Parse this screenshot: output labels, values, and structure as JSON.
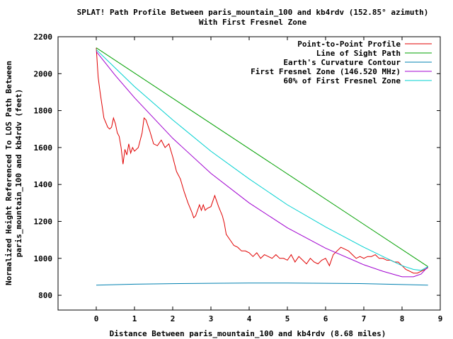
{
  "chart_data": {
    "type": "line",
    "title": "SPLAT! Path Profile Between paris_mountain_100 and kb4rdv (152.85° azimuth)",
    "subtitle": "With First Fresnel Zone",
    "xlabel": "Distance Between paris_mountain_100 and kb4rdv (8.68 miles)",
    "ylabel_lines": [
      "Normalized Height Referenced To LOS Path Between",
      "paris_mountain_100 and kb4rdv (feet)"
    ],
    "xlim": [
      -1,
      9
    ],
    "ylim": [
      720,
      2200
    ],
    "xticks": [
      "0",
      "1",
      "2",
      "3",
      "4",
      "5",
      "6",
      "7",
      "8",
      "9"
    ],
    "yticks": [
      "800",
      "1000",
      "1200",
      "1400",
      "1600",
      "1800",
      "2000",
      "2200"
    ],
    "legend_position": "top-right",
    "series": [
      {
        "name": "Point-to-Point Profile",
        "color": "#e00000",
        "x": [
          0,
          0.05,
          0.1,
          0.15,
          0.2,
          0.3,
          0.35,
          0.4,
          0.45,
          0.5,
          0.55,
          0.6,
          0.65,
          0.7,
          0.75,
          0.8,
          0.85,
          0.9,
          0.95,
          1.0,
          1.1,
          1.2,
          1.25,
          1.3,
          1.4,
          1.5,
          1.6,
          1.7,
          1.8,
          1.9,
          2.0,
          2.1,
          2.2,
          2.3,
          2.4,
          2.5,
          2.55,
          2.6,
          2.7,
          2.75,
          2.8,
          2.85,
          2.9,
          3.0,
          3.1,
          3.2,
          3.3,
          3.35,
          3.4,
          3.5,
          3.6,
          3.7,
          3.8,
          3.9,
          4.0,
          4.1,
          4.2,
          4.3,
          4.4,
          4.5,
          4.6,
          4.7,
          4.8,
          4.9,
          5.0,
          5.1,
          5.2,
          5.3,
          5.4,
          5.5,
          5.6,
          5.7,
          5.8,
          5.9,
          6.0,
          6.1,
          6.2,
          6.3,
          6.4,
          6.5,
          6.6,
          6.7,
          6.8,
          6.9,
          7.0,
          7.1,
          7.2,
          7.3,
          7.4,
          7.5,
          7.6,
          7.7,
          7.8,
          7.9,
          8.0,
          8.1,
          8.2,
          8.3,
          8.4,
          8.5,
          8.6,
          8.68
        ],
        "values": [
          2140,
          1980,
          1900,
          1830,
          1760,
          1710,
          1700,
          1710,
          1760,
          1730,
          1680,
          1660,
          1600,
          1510,
          1590,
          1560,
          1620,
          1570,
          1600,
          1580,
          1600,
          1680,
          1760,
          1750,
          1690,
          1620,
          1610,
          1640,
          1600,
          1620,
          1550,
          1470,
          1430,
          1360,
          1300,
          1250,
          1220,
          1230,
          1290,
          1260,
          1290,
          1260,
          1270,
          1280,
          1340,
          1280,
          1230,
          1190,
          1130,
          1100,
          1070,
          1060,
          1040,
          1040,
          1030,
          1010,
          1030,
          1000,
          1020,
          1010,
          1000,
          1020,
          1000,
          1000,
          990,
          1020,
          980,
          1010,
          990,
          970,
          1000,
          980,
          970,
          990,
          1000,
          960,
          1020,
          1040,
          1060,
          1050,
          1040,
          1020,
          1000,
          1010,
          1000,
          1010,
          1010,
          1020,
          1000,
          1000,
          990,
          990,
          980,
          980,
          960,
          940,
          930,
          920,
          920,
          930,
          940,
          950
        ]
      },
      {
        "name": "Line of Sight Path",
        "color": "#00a000",
        "x": [
          0,
          8.68
        ],
        "values": [
          2140,
          955
        ]
      },
      {
        "name": "Earth's Curvature Contour",
        "color": "#0080b0",
        "x": [
          0,
          1,
          2,
          3,
          4,
          4.34,
          5,
          6,
          7,
          8,
          8.68
        ],
        "values": [
          855,
          860,
          863,
          865,
          866,
          866,
          866,
          865,
          863,
          858,
          855
        ]
      },
      {
        "name": "First Fresnel Zone (146.520 MHz)",
        "color": "#a000d0",
        "x": [
          0,
          0.5,
          1,
          2,
          3,
          4,
          5,
          6,
          7,
          7.5,
          8,
          8.3,
          8.5,
          8.68
        ],
        "values": [
          2120,
          1990,
          1870,
          1650,
          1460,
          1300,
          1165,
          1055,
          965,
          930,
          900,
          900,
          915,
          955
        ]
      },
      {
        "name": "60% of First Fresnel Zone",
        "color": "#00d0d0",
        "x": [
          0,
          0.5,
          1,
          2,
          3,
          4,
          5,
          6,
          7,
          7.5,
          8,
          8.3,
          8.5,
          8.68
        ],
        "values": [
          2130,
          2030,
          1930,
          1750,
          1580,
          1430,
          1290,
          1170,
          1060,
          1010,
          960,
          940,
          935,
          955
        ]
      }
    ]
  }
}
